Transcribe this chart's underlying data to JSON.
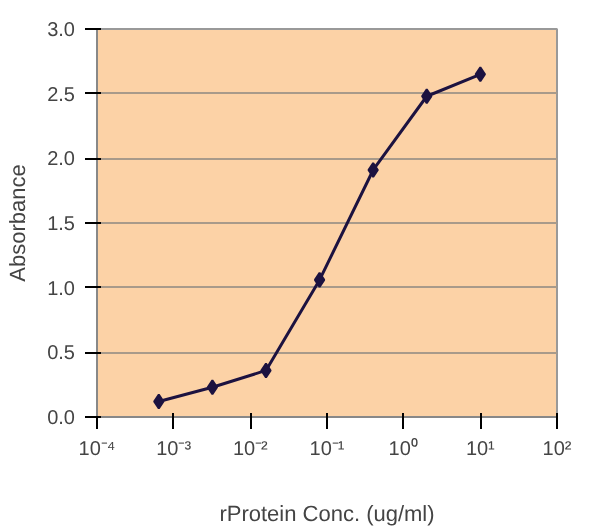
{
  "chart_data": {
    "type": "line",
    "xlabel": "rProtein Conc. (ug/ml)",
    "ylabel": "Absorbance",
    "x": [
      0.00064,
      0.0032,
      0.016,
      0.08,
      0.4,
      2,
      10
    ],
    "series": [
      {
        "color": "#1c1240",
        "values": [
          0.12,
          0.23,
          0.36,
          1.06,
          1.91,
          2.48,
          2.65
        ]
      }
    ],
    "log": "x",
    "marker": "diamond",
    "line_style": "solid",
    "grid": "y",
    "xlim": [
      0.0001,
      100
    ],
    "xticks": [
      {
        "value": 0.0001,
        "label": "10⁻⁴"
      },
      {
        "value": 0.001,
        "label": "10⁻³"
      },
      {
        "value": 0.01,
        "label": "10⁻²"
      },
      {
        "value": 0.1,
        "label": "10⁻¹"
      },
      {
        "value": 1,
        "label": "10⁰"
      },
      {
        "value": 10,
        "label": "10¹"
      },
      {
        "value": 100,
        "label": "10²"
      }
    ],
    "ylim": [
      0,
      3
    ],
    "yticks": [
      {
        "value": 0,
        "label": "0.0"
      },
      {
        "value": 0.5,
        "label": "0.5"
      },
      {
        "value": 1,
        "label": "1.0"
      },
      {
        "value": 1.5,
        "label": "1.5"
      },
      {
        "value": 2,
        "label": "2.0"
      },
      {
        "value": 2.5,
        "label": "2.5"
      },
      {
        "value": 3,
        "label": "3.0"
      }
    ]
  }
}
